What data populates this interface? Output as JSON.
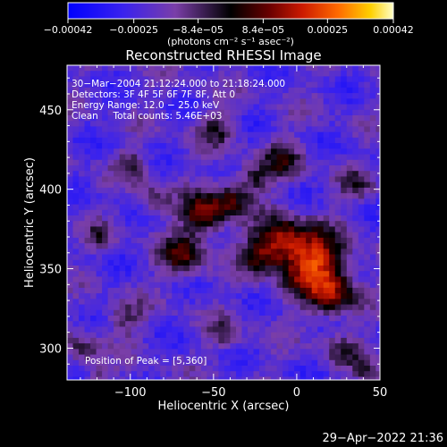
{
  "chart_data": {
    "type": "heatmap",
    "title": "Reconstructed RHESSI Image",
    "xlabel": "Heliocentric X (arcsec)",
    "ylabel": "Heliocentric Y (arcsec)",
    "xlim": [
      -138,
      50
    ],
    "ylim": [
      280,
      478
    ],
    "x_ticks": [
      -100,
      -50,
      0,
      50
    ],
    "x_tick_labels": [
      "−100",
      "−50",
      "0",
      "50"
    ],
    "y_ticks": [
      300,
      350,
      400,
      450
    ],
    "y_tick_labels": [
      "300",
      "350",
      "400",
      "450"
    ],
    "colorbar": {
      "unit_label": "(photons cm⁻² s⁻¹ asec⁻²)",
      "range": [
        -0.00042,
        0.00042
      ],
      "tick_values": [
        -0.00042,
        -0.00025,
        -8.4e-05,
        8.4e-05,
        0.00025,
        0.00042
      ],
      "tick_labels": [
        "−0.00042",
        "−0.00025",
        "−8.4e−05",
        "8.4e−05",
        "0.00025",
        "0.00042"
      ]
    },
    "annotations": [
      "30−Mar−2004 21:12:24.000 to 21:18:24.000",
      "Detectors: 3F 4F 5F 6F 7F 8F, Att 0",
      "Energy Range: 12.0 − 25.0 keV",
      "Clean     Total counts: 5.46E+03"
    ],
    "peak_text": "Position of Peak = [5,360]",
    "peak": [
      5,
      360
    ],
    "sources": [
      {
        "x": 8,
        "y": 356,
        "sigma": 14,
        "amp": 0.00042
      },
      {
        "x": -12,
        "y": 370,
        "sigma": 10,
        "amp": 0.0003
      },
      {
        "x": 20,
        "y": 335,
        "sigma": 10,
        "amp": 0.00026
      },
      {
        "x": -58,
        "y": 385,
        "sigma": 9,
        "amp": 0.00032
      },
      {
        "x": -70,
        "y": 360,
        "sigma": 9,
        "amp": 0.00028
      },
      {
        "x": -42,
        "y": 395,
        "sigma": 8,
        "amp": 0.00024
      },
      {
        "x": -25,
        "y": 360,
        "sigma": 8,
        "amp": 0.0002
      },
      {
        "x": -28,
        "y": 408,
        "sigma": 7,
        "amp": 0.00018
      },
      {
        "x": -10,
        "y": 420,
        "sigma": 9,
        "amp": 0.00018
      },
      {
        "x": -88,
        "y": 395,
        "sigma": 7,
        "amp": 0.00016
      },
      {
        "x": -100,
        "y": 418,
        "sigma": 7,
        "amp": 0.00015
      },
      {
        "x": -50,
        "y": 440,
        "sigma": 8,
        "amp": 0.00016
      },
      {
        "x": -120,
        "y": 372,
        "sigma": 6,
        "amp": 0.00012
      },
      {
        "x": -105,
        "y": 320,
        "sigma": 8,
        "amp": 0.00014
      },
      {
        "x": -130,
        "y": 300,
        "sigma": 7,
        "amp": 0.00016
      },
      {
        "x": -45,
        "y": 310,
        "sigma": 7,
        "amp": 0.00013
      },
      {
        "x": 25,
        "y": 300,
        "sigma": 8,
        "amp": 0.00014
      },
      {
        "x": 42,
        "y": 285,
        "sigma": 6,
        "amp": 0.00016
      },
      {
        "x": 35,
        "y": 405,
        "sigma": 7,
        "amp": 0.00014
      },
      {
        "x": -120,
        "y": 283,
        "sigma": 5,
        "amp": 0.00012
      }
    ]
  },
  "footer": {
    "timestamp": "29−Apr−2022 21:36"
  }
}
